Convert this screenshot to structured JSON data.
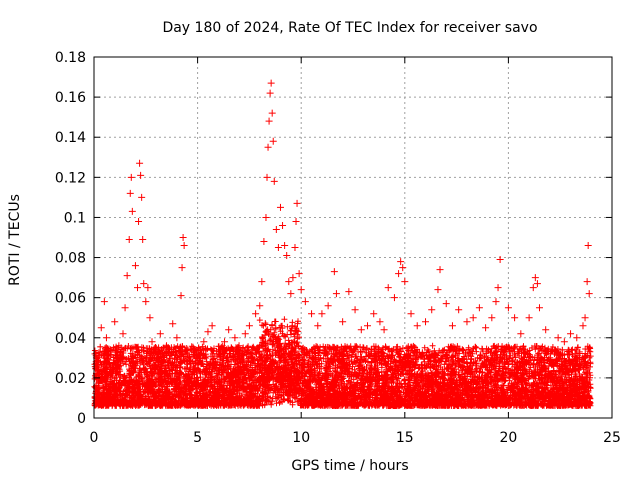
{
  "chart_data": {
    "type": "scatter",
    "title": "Day 180 of 2024, Rate Of TEC Index for receiver savo",
    "xlabel": "GPS time / hours",
    "ylabel": "ROTI / TECUs",
    "xlim": [
      0,
      25
    ],
    "ylim": [
      0,
      0.18
    ],
    "grid": true,
    "marker": "plus",
    "colors": {
      "series": "#ff0000",
      "grid": "#a0a0a0",
      "axis": "#000000"
    },
    "x_ticks": [
      {
        "value": 0,
        "label": "0"
      },
      {
        "value": 5,
        "label": "5"
      },
      {
        "value": 10,
        "label": "10"
      },
      {
        "value": 15,
        "label": "15"
      },
      {
        "value": 20,
        "label": "20"
      },
      {
        "value": 25,
        "label": "25"
      }
    ],
    "y_ticks": [
      {
        "value": 0,
        "label": "0"
      },
      {
        "value": 0.02,
        "label": "0.02"
      },
      {
        "value": 0.04,
        "label": "0.04"
      },
      {
        "value": 0.06,
        "label": "0.06"
      },
      {
        "value": 0.08,
        "label": "0.08"
      },
      {
        "value": 0.1,
        "label": "0.1"
      },
      {
        "value": 0.12,
        "label": "0.12"
      },
      {
        "value": 0.14,
        "label": "0.14"
      },
      {
        "value": 0.16,
        "label": "0.16"
      },
      {
        "value": 0.18,
        "label": "0.18"
      }
    ],
    "series": [
      {
        "x": [
          0.05,
          0.2,
          0.35,
          0.5,
          0.6,
          0.8,
          1.0,
          1.2,
          1.4,
          1.5,
          1.6,
          1.7,
          1.75,
          1.8,
          1.85,
          2.0,
          2.1,
          2.15,
          2.2,
          2.25,
          2.3,
          2.35,
          2.4,
          2.5,
          2.6,
          2.7,
          2.8,
          3.0,
          3.2,
          3.5,
          3.8,
          4.0,
          4.2,
          4.25,
          4.3,
          4.35,
          4.5,
          4.8,
          5.0,
          5.3,
          5.5,
          5.7,
          6.0,
          6.3,
          6.5,
          6.8,
          7.0,
          7.3,
          7.5,
          7.8,
          8.0,
          8.1,
          8.2,
          8.3,
          8.35,
          8.4,
          8.45,
          8.5,
          8.55,
          8.6,
          8.65,
          8.7,
          8.8,
          8.9,
          9.0,
          9.1,
          9.2,
          9.3,
          9.4,
          9.5,
          9.6,
          9.7,
          9.75,
          9.8,
          9.9,
          10.0,
          10.2,
          10.5,
          10.8,
          11.0,
          11.3,
          11.6,
          11.7,
          12.0,
          12.3,
          12.6,
          12.9,
          13.2,
          13.5,
          13.8,
          14.0,
          14.2,
          14.5,
          14.7,
          14.8,
          14.9,
          15.0,
          15.3,
          15.6,
          16.0,
          16.3,
          16.6,
          16.7,
          17.0,
          17.3,
          17.6,
          18.0,
          18.3,
          18.6,
          18.9,
          19.2,
          19.4,
          19.5,
          19.6,
          20.0,
          20.3,
          20.6,
          21.0,
          21.2,
          21.3,
          21.4,
          21.5,
          21.8,
          22.1,
          22.4,
          22.7,
          23.0,
          23.3,
          23.6,
          23.7,
          23.8,
          23.85,
          23.9
        ],
        "y": [
          0.032,
          0.028,
          0.045,
          0.058,
          0.04,
          0.034,
          0.048,
          0.036,
          0.042,
          0.055,
          0.071,
          0.089,
          0.112,
          0.12,
          0.103,
          0.076,
          0.065,
          0.098,
          0.127,
          0.121,
          0.11,
          0.089,
          0.067,
          0.058,
          0.065,
          0.05,
          0.038,
          0.03,
          0.042,
          0.036,
          0.047,
          0.04,
          0.061,
          0.075,
          0.09,
          0.086,
          0.034,
          0.025,
          0.03,
          0.038,
          0.043,
          0.046,
          0.032,
          0.038,
          0.044,
          0.04,
          0.036,
          0.042,
          0.046,
          0.052,
          0.056,
          0.068,
          0.088,
          0.1,
          0.12,
          0.135,
          0.148,
          0.162,
          0.167,
          0.152,
          0.138,
          0.118,
          0.094,
          0.085,
          0.105,
          0.096,
          0.086,
          0.081,
          0.068,
          0.062,
          0.07,
          0.085,
          0.098,
          0.107,
          0.072,
          0.064,
          0.058,
          0.052,
          0.046,
          0.052,
          0.056,
          0.073,
          0.062,
          0.048,
          0.063,
          0.054,
          0.044,
          0.046,
          0.052,
          0.048,
          0.044,
          0.065,
          0.06,
          0.072,
          0.078,
          0.075,
          0.068,
          0.052,
          0.046,
          0.048,
          0.054,
          0.064,
          0.074,
          0.057,
          0.046,
          0.054,
          0.048,
          0.05,
          0.055,
          0.045,
          0.05,
          0.058,
          0.065,
          0.079,
          0.055,
          0.05,
          0.042,
          0.05,
          0.065,
          0.07,
          0.067,
          0.055,
          0.044,
          0.034,
          0.04,
          0.038,
          0.042,
          0.04,
          0.046,
          0.05,
          0.068,
          0.086,
          0.062
        ]
      }
    ]
  }
}
